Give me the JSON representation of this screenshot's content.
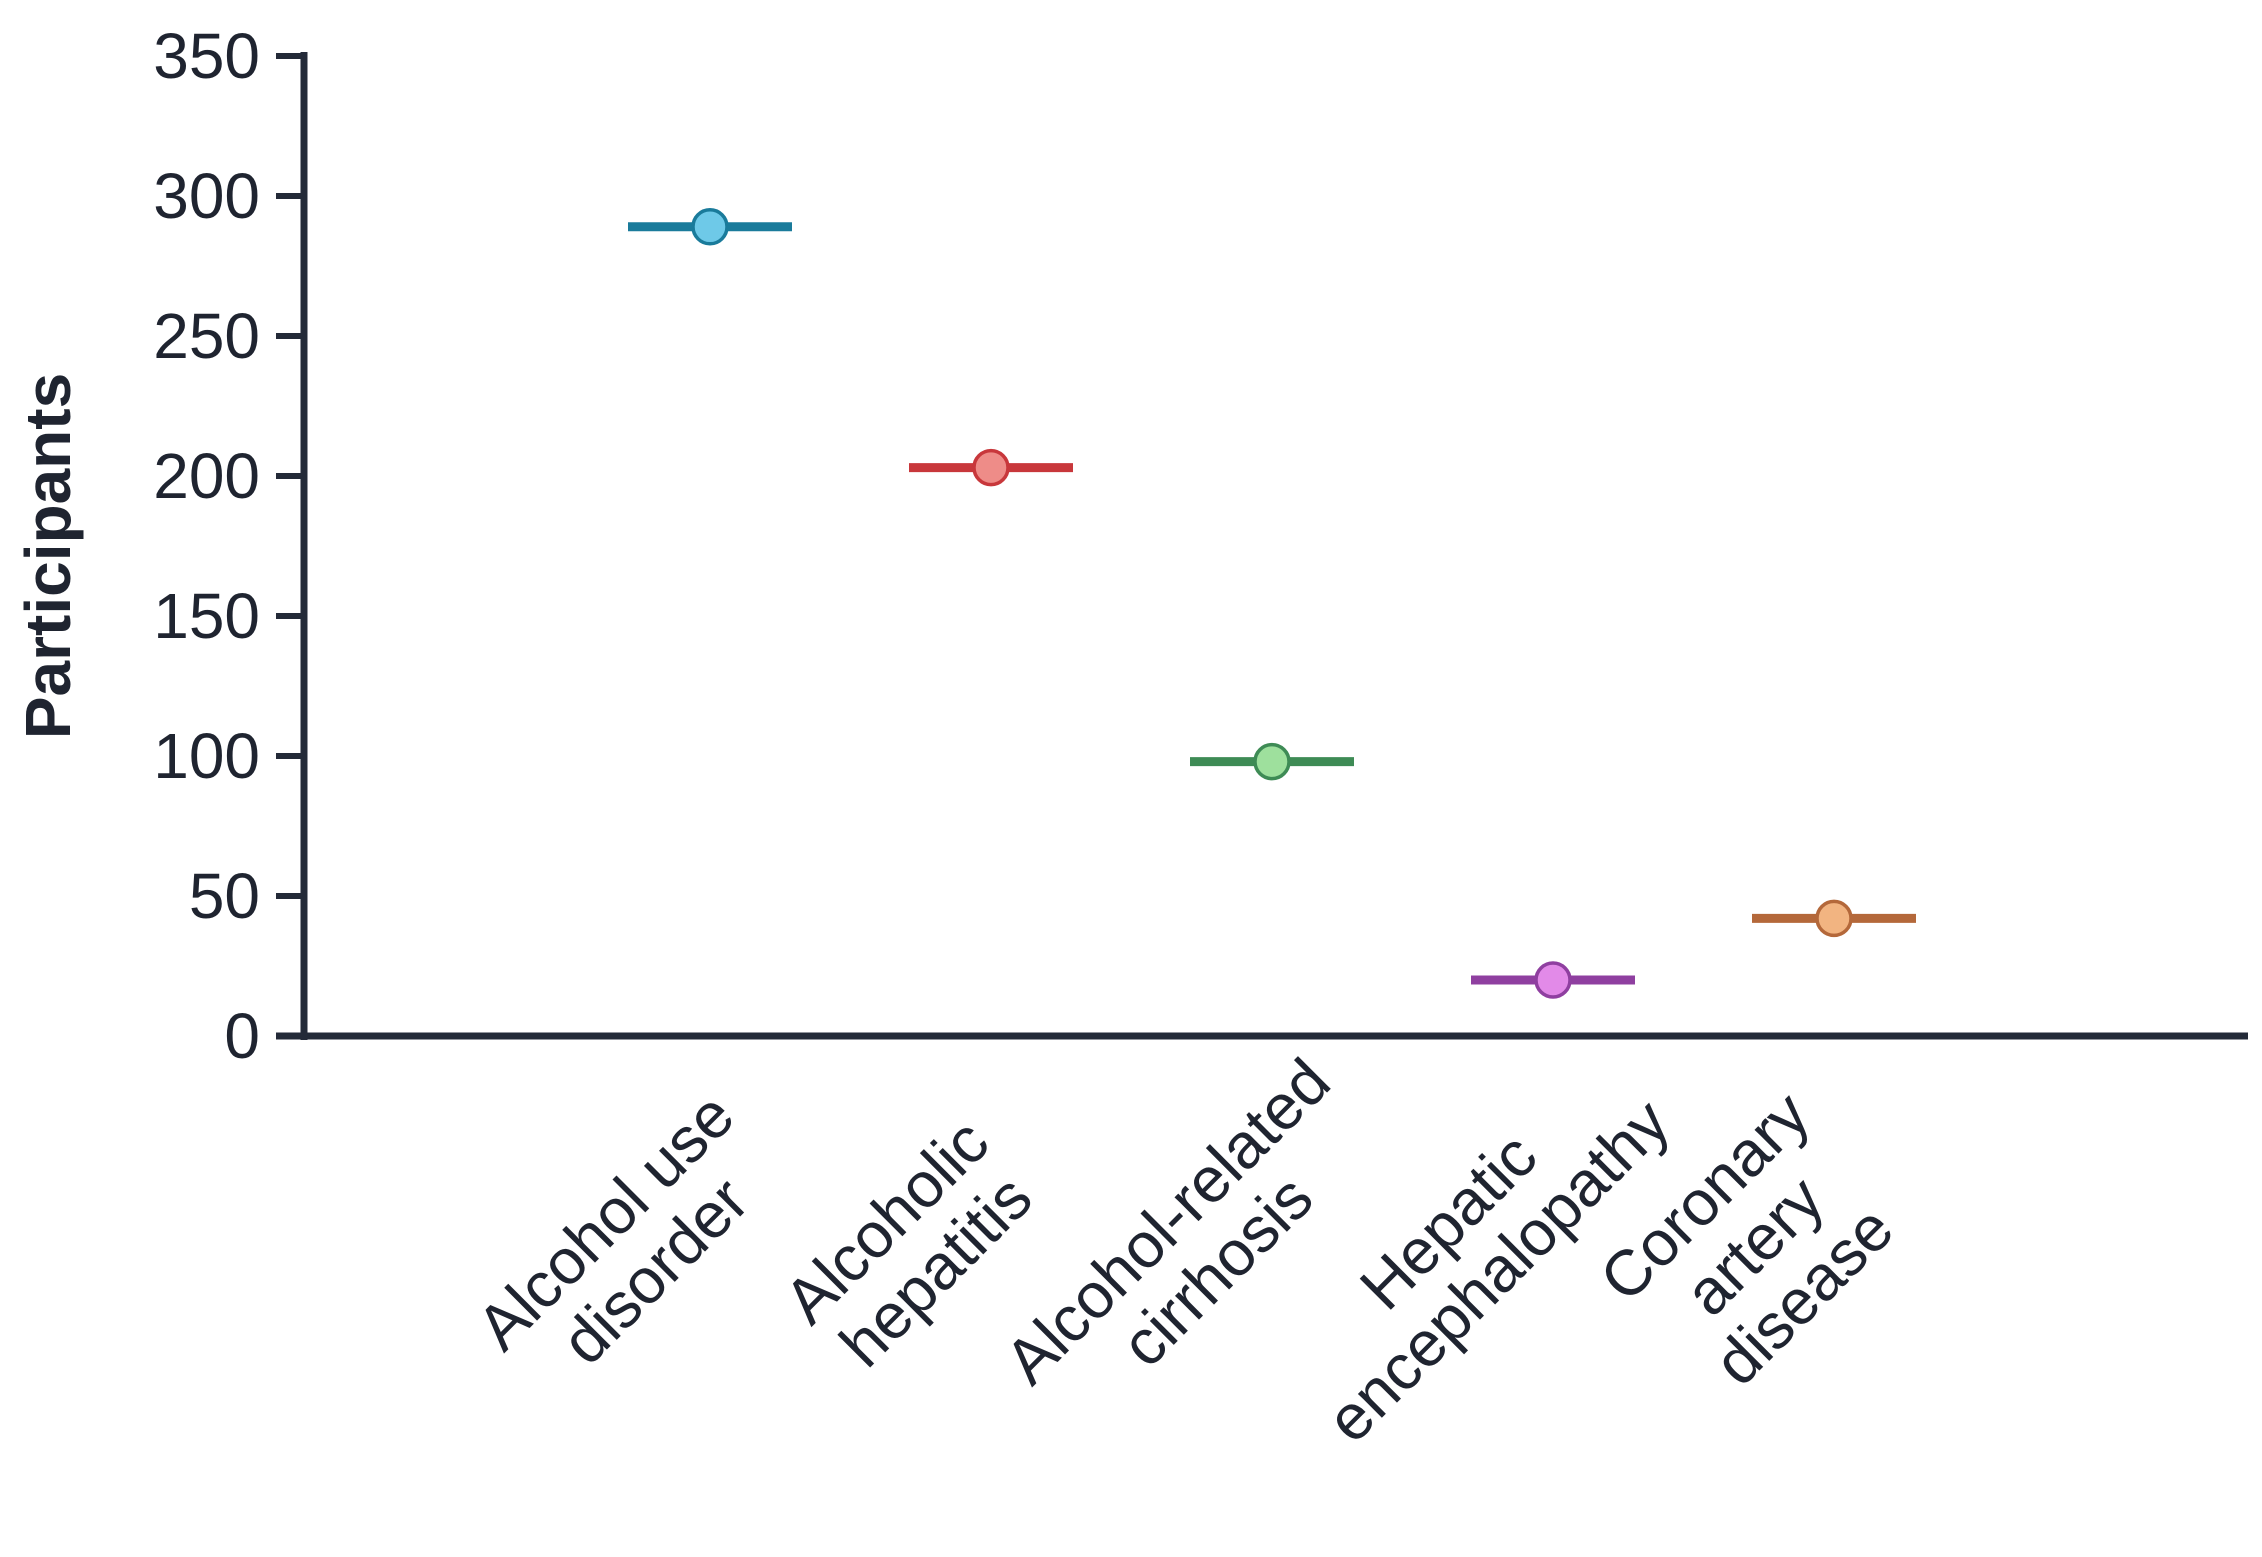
{
  "chart_data": {
    "type": "scatter",
    "title": "",
    "xlabel": "",
    "ylabel": "Participants",
    "ylim": [
      0,
      350
    ],
    "yticks": [
      0,
      50,
      100,
      150,
      200,
      250,
      300,
      350
    ],
    "grid": false,
    "legend": "none",
    "categories": [
      {
        "label_lines": [
          "Alcohol use",
          "disorder"
        ],
        "value": 289,
        "line_color": "#1a7b9b",
        "marker_color": "#6ec9e8"
      },
      {
        "label_lines": [
          "Alcoholic",
          "hepatitis"
        ],
        "value": 203,
        "line_color": "#c8373b",
        "marker_color": "#ee8c88"
      },
      {
        "label_lines": [
          "Alcohol-related",
          "cirrhosis"
        ],
        "value": 98,
        "line_color": "#3e8b55",
        "marker_color": "#9ee09d"
      },
      {
        "label_lines": [
          "Hepatic",
          "encephalopathy"
        ],
        "value": 20,
        "line_color": "#8f3fa0",
        "marker_color": "#e28ae8"
      },
      {
        "label_lines": [
          "Coronary",
          "artery",
          "disease"
        ],
        "value": 42,
        "line_color": "#b4683a",
        "marker_color": "#f2b481"
      }
    ]
  }
}
